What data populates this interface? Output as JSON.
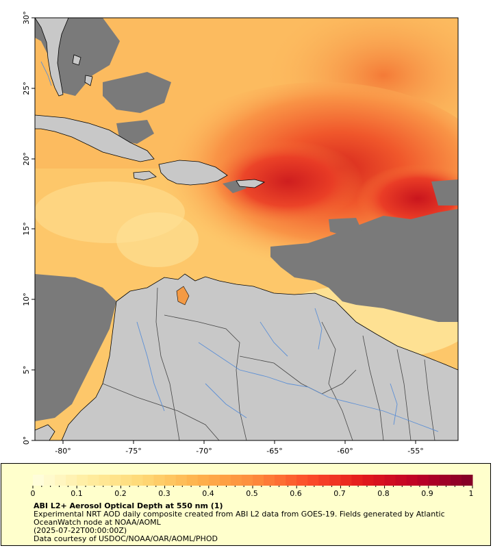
{
  "map": {
    "lat_ticks": [
      "30°",
      "25°",
      "20°",
      "15°",
      "10°",
      "5°",
      "0°"
    ],
    "lon_ticks": [
      "-80°",
      "-75°",
      "-70°",
      "-65°",
      "-60°",
      "-55°"
    ],
    "colors": {
      "land": "#c8c8c8",
      "no_data": "#7a7a7a",
      "rivers": "#5b8fd6",
      "borders": "#444444",
      "coast": "#000000"
    }
  },
  "legend": {
    "ticks": [
      "0",
      "0.1",
      "0.2",
      "0.3",
      "0.4",
      "0.5",
      "0.6",
      "0.7",
      "0.8",
      "0.9",
      "1"
    ],
    "colorscale": [
      "#ffffe0",
      "#ffeda0",
      "#fed976",
      "#feb24c",
      "#fd8d3c",
      "#fc4e2a",
      "#e31a1c",
      "#bd0026",
      "#800026"
    ],
    "title": "ABI L2+ Aerosol Optical Depth at 550 nm (1)",
    "line1": "Experimental NRT AOD daily composite created from ABI L2 data from GOES-19. Fields generated by Atlantic",
    "line2": "OceanWatch node at NOAA/AOML",
    "line3": "(2025-07-22T00:00:00Z)",
    "line4": "Data courtesy of USDOC/NOAA/OAR/AOML/PHOD"
  }
}
